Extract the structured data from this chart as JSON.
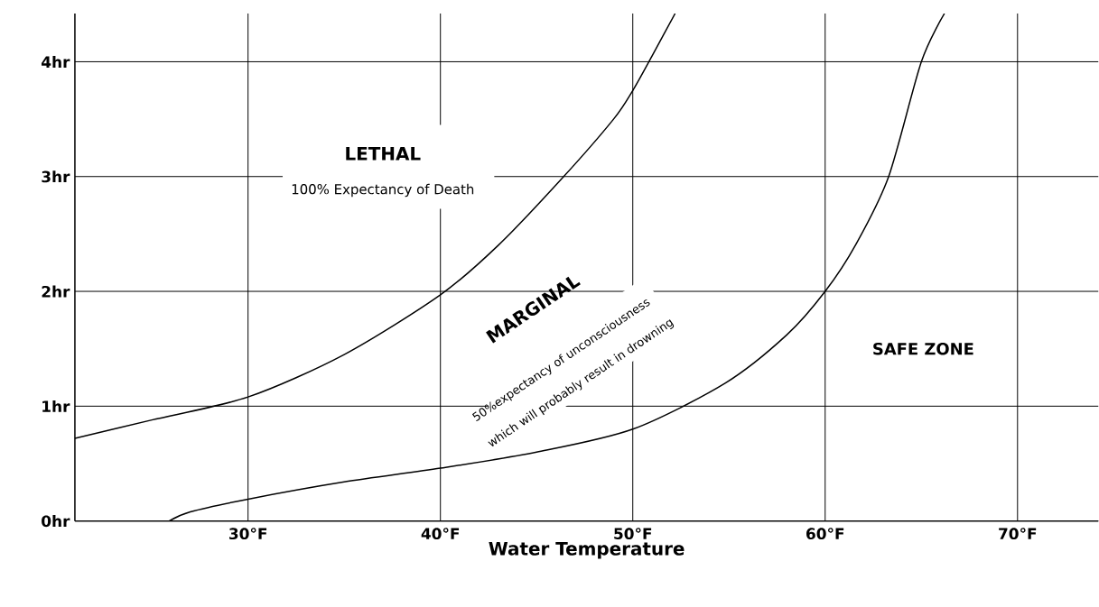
{
  "chart_data": {
    "type": "line",
    "xlabel": "Water Temperature",
    "xlim": [
      21,
      74.2
    ],
    "ylim": [
      0,
      4.42
    ],
    "xticks": [
      {
        "value": 30,
        "label": "30°F"
      },
      {
        "value": 40,
        "label": "40°F"
      },
      {
        "value": 50,
        "label": "50°F"
      },
      {
        "value": 60,
        "label": "60°F"
      },
      {
        "value": 70,
        "label": "70°F"
      }
    ],
    "yticks": [
      {
        "value": 0,
        "label": "0hr"
      },
      {
        "value": 1,
        "label": "1hr"
      },
      {
        "value": 2,
        "label": "2hr"
      },
      {
        "value": 3,
        "label": "3hr"
      },
      {
        "value": 4,
        "label": "4hr"
      }
    ],
    "grid": true,
    "line_style": "solid",
    "series": [
      {
        "color": "#000000",
        "x": [
          21,
          25,
          30,
          35,
          40,
          43,
          46.3,
          49,
          50,
          51,
          52.2
        ],
        "values": [
          0.72,
          0.88,
          1.08,
          1.45,
          1.97,
          2.4,
          2.98,
          3.5,
          3.75,
          4.05,
          4.42
        ]
      },
      {
        "color": "#000000",
        "x": [
          25.9,
          27,
          30,
          35,
          40,
          45,
          50,
          54.8,
          58,
          60,
          61.6,
          63.3,
          65,
          66.2
        ],
        "values": [
          0,
          0.08,
          0.19,
          0.34,
          0.46,
          0.6,
          0.8,
          1.2,
          1.62,
          2.0,
          2.41,
          3.0,
          4.0,
          4.42
        ]
      }
    ],
    "annotations": [
      "LETHAL",
      "100% Expectancy of Death",
      "MARGINAL",
      "50%expectancy of unconsciousness",
      "which will probably result in drowning",
      "SAFE ZONE"
    ]
  }
}
